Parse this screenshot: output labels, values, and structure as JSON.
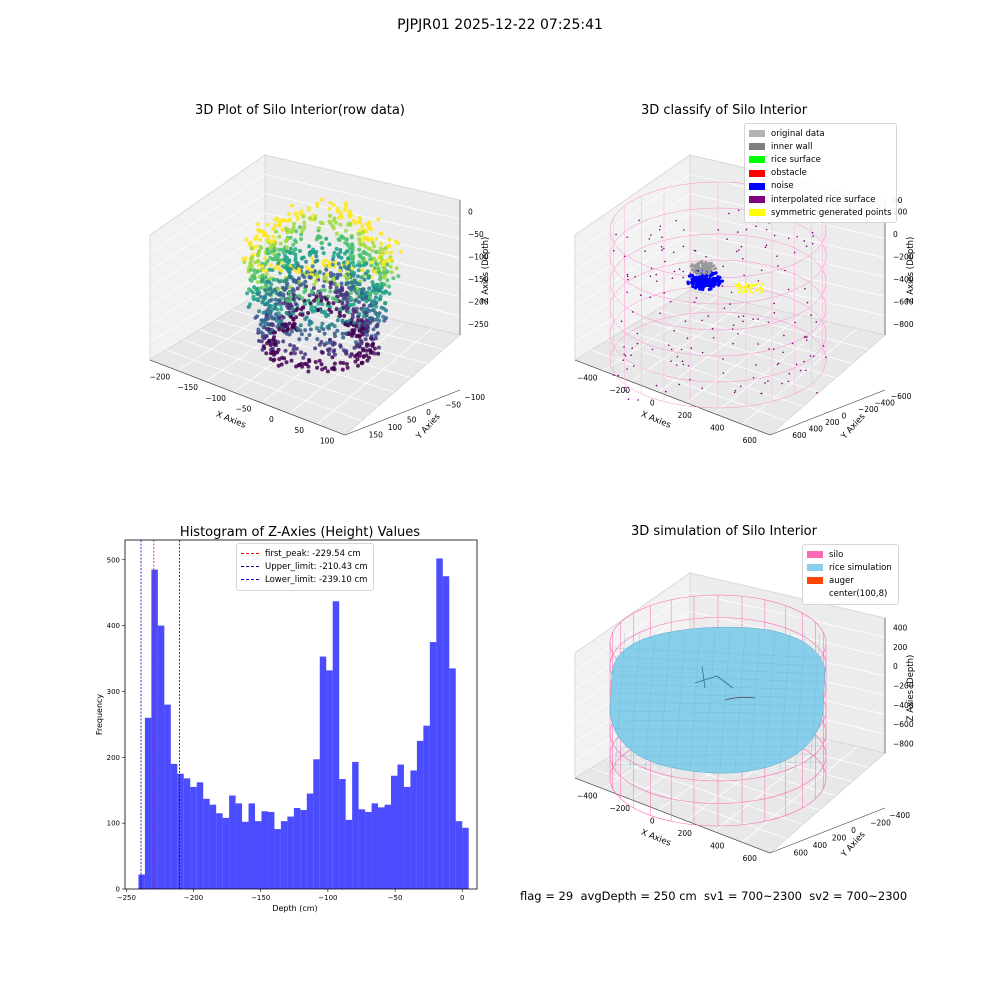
{
  "suptitle": "PJPJR01 2025-12-22 07:25:41",
  "panels": {
    "raw": {
      "title": "3D Plot of Silo Interior(row data)",
      "xlabel": "X Axies",
      "ylabel": "Y Axies",
      "zlabel": "Z Axies (Depth)",
      "xticks": [
        "−200",
        "−150",
        "−100",
        "−50",
        "0",
        "50",
        "100"
      ],
      "yticks": [
        "−100",
        "−50",
        "0",
        "50",
        "100",
        "150"
      ],
      "zticks": [
        "0",
        "−50",
        "−100",
        "−150",
        "−200",
        "−250"
      ]
    },
    "classify": {
      "title": "3D classify of Silo Interior",
      "xlabel": "X Axies",
      "ylabel": "Y Axies",
      "zlabel": "Z Axies (Depth)",
      "xticks": [
        "−400",
        "−200",
        "0",
        "200",
        "400",
        "600"
      ],
      "yticks": [
        "−600",
        "−400",
        "−200",
        "0",
        "200",
        "400",
        "600"
      ],
      "zticks": [
        "200",
        "0",
        "−200",
        "−400",
        "−600",
        "−800"
      ],
      "z_top_tick_partial": "00",
      "legend": [
        {
          "label": "original data",
          "color": "#b3b3b3"
        },
        {
          "label": "inner wall",
          "color": "#808080"
        },
        {
          "label": "rice surface",
          "color": "#00ff00"
        },
        {
          "label": "obstacle",
          "color": "#ff0000"
        },
        {
          "label": "noise",
          "color": "#0000ff"
        },
        {
          "label": "interpolated rice surface",
          "color": "#800080"
        },
        {
          "label": "symmetric generated points",
          "color": "#ffff00"
        }
      ]
    },
    "simulation": {
      "title": "3D simulation of Silo Interior",
      "xlabel": "X Axies",
      "ylabel": "Y Axies",
      "zlabel": "Z Axies (Depth)",
      "xticks": [
        "−400",
        "−200",
        "0",
        "200",
        "400",
        "600"
      ],
      "yticks": [
        "−400",
        "−200",
        "0",
        "200",
        "400",
        "600"
      ],
      "zticks": [
        "400",
        "200",
        "0",
        "−200",
        "−400",
        "−600",
        "−800"
      ],
      "legend": [
        {
          "label": "silo",
          "color": "#ff69b4"
        },
        {
          "label": "rice simulation",
          "color": "#87ceeb"
        },
        {
          "label": "auger",
          "color": "#ff4500"
        },
        {
          "label": "center(100,8)",
          "color": null
        }
      ],
      "footer": "flag = 29  avgDepth = 250 cm  sv1 = 700~2300  sv2 = 700~2300"
    }
  },
  "chart_data": [
    {
      "type": "bar",
      "title": "Histogram of Z-Axies (Height) Values",
      "xlabel": "Depth (cm)",
      "ylabel": "Frequency",
      "xlim": [
        -251,
        11
      ],
      "ylim": [
        0,
        530
      ],
      "xticks": [
        -250,
        -200,
        -150,
        -100,
        -50,
        0
      ],
      "yticks": [
        0,
        100,
        200,
        300,
        400,
        500
      ],
      "bar_color": "#0000ff",
      "bin_start": -241.0,
      "bin_width": 4.82,
      "values": [
        22,
        260,
        485,
        400,
        280,
        190,
        175,
        168,
        155,
        162,
        137,
        128,
        115,
        108,
        142,
        130,
        102,
        130,
        103,
        118,
        117,
        91,
        103,
        110,
        123,
        120,
        145,
        197,
        353,
        332,
        437,
        167,
        105,
        193,
        121,
        117,
        130,
        124,
        128,
        172,
        189,
        155,
        180,
        225,
        248,
        375,
        502,
        475,
        335,
        103,
        93
      ],
      "lines": [
        {
          "label": "first_peak: -229.54 cm",
          "x": -229.54,
          "color": "#ff0000"
        },
        {
          "label": "Upper_limit: -210.43 cm",
          "x": -210.43,
          "color": "#00008b"
        },
        {
          "label": "Lower_limit: -239.10 cm",
          "x": -239.1,
          "color": "#0000cd"
        }
      ]
    }
  ]
}
